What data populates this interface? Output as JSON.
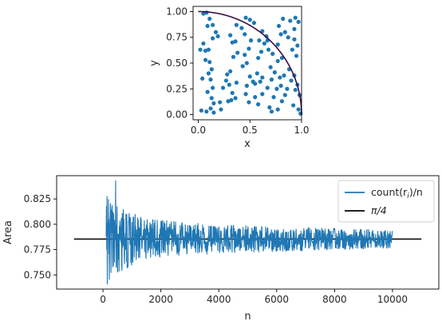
{
  "chart_data": [
    {
      "type": "scatter",
      "xlabel": "x",
      "ylabel": "y",
      "xlim": [
        -0.05,
        1.0
      ],
      "ylim": [
        -0.05,
        1.05
      ],
      "xticks": [
        0.0,
        0.5,
        1.0
      ],
      "xtick_labels": [
        "0.0",
        "0.5",
        "1.0"
      ],
      "yticks": [
        0.0,
        0.25,
        0.5,
        0.75,
        1.0
      ],
      "ytick_labels": [
        "0.00",
        "0.25",
        "0.50",
        "0.75",
        "1.00"
      ],
      "grid": false,
      "colors": {
        "points": "#1f77b4",
        "curve": "#3b0f3f"
      },
      "curve": {
        "description": "quarter circle y = sqrt(1 - x^2)",
        "x_range": [
          0.0,
          1.0
        ]
      },
      "points": [
        [
          0.05,
          0.98
        ],
        [
          0.08,
          0.99
        ],
        [
          0.11,
          0.93
        ],
        [
          0.09,
          0.86
        ],
        [
          0.14,
          0.87
        ],
        [
          0.17,
          0.8
        ],
        [
          0.14,
          0.74
        ],
        [
          0.19,
          0.76
        ],
        [
          0.05,
          0.69
        ],
        [
          0.02,
          0.63
        ],
        [
          0.07,
          0.62
        ],
        [
          0.1,
          0.63
        ],
        [
          0.07,
          0.53
        ],
        [
          0.11,
          0.51
        ],
        [
          0.13,
          0.44
        ],
        [
          0.1,
          0.4
        ],
        [
          0.04,
          0.35
        ],
        [
          0.12,
          0.34
        ],
        [
          0.14,
          0.26
        ],
        [
          0.09,
          0.22
        ],
        [
          0.13,
          0.16
        ],
        [
          0.15,
          0.11
        ],
        [
          0.12,
          0.06
        ],
        [
          0.08,
          0.03
        ],
        [
          0.15,
          0.02
        ],
        [
          0.03,
          0.04
        ],
        [
          0.22,
          0.05
        ],
        [
          0.21,
          0.12
        ],
        [
          0.24,
          0.26
        ],
        [
          0.27,
          0.33
        ],
        [
          0.28,
          0.39
        ],
        [
          0.31,
          0.42
        ],
        [
          0.3,
          0.29
        ],
        [
          0.33,
          0.21
        ],
        [
          0.29,
          0.13
        ],
        [
          0.32,
          0.14
        ],
        [
          0.36,
          0.16
        ],
        [
          0.37,
          0.31
        ],
        [
          0.34,
          0.56
        ],
        [
          0.38,
          0.6
        ],
        [
          0.36,
          0.71
        ],
        [
          0.33,
          0.7
        ],
        [
          0.31,
          0.77
        ],
        [
          0.37,
          0.87
        ],
        [
          0.42,
          0.84
        ],
        [
          0.46,
          0.94
        ],
        [
          0.5,
          0.92
        ],
        [
          0.54,
          0.89
        ],
        [
          0.45,
          0.78
        ],
        [
          0.51,
          0.72
        ],
        [
          0.49,
          0.64
        ],
        [
          0.45,
          0.58
        ],
        [
          0.43,
          0.47
        ],
        [
          0.47,
          0.5
        ],
        [
          0.5,
          0.37
        ],
        [
          0.47,
          0.28
        ],
        [
          0.53,
          0.32
        ],
        [
          0.55,
          0.3
        ],
        [
          0.46,
          0.2
        ],
        [
          0.49,
          0.12
        ],
        [
          0.55,
          0.17
        ],
        [
          0.58,
          0.1
        ],
        [
          0.62,
          0.2
        ],
        [
          0.6,
          0.32
        ],
        [
          0.62,
          0.36
        ],
        [
          0.57,
          0.4
        ],
        [
          0.58,
          0.55
        ],
        [
          0.61,
          0.61
        ],
        [
          0.64,
          0.69
        ],
        [
          0.59,
          0.72
        ],
        [
          0.67,
          0.72
        ],
        [
          0.62,
          0.81
        ],
        [
          0.66,
          0.76
        ],
        [
          0.68,
          0.63
        ],
        [
          0.72,
          0.59
        ],
        [
          0.7,
          0.46
        ],
        [
          0.74,
          0.41
        ],
        [
          0.71,
          0.34
        ],
        [
          0.67,
          0.26
        ],
        [
          0.76,
          0.25
        ],
        [
          0.73,
          0.17
        ],
        [
          0.69,
          0.07
        ],
        [
          0.71,
          0.03
        ],
        [
          0.77,
          0.05
        ],
        [
          0.81,
          0.13
        ],
        [
          0.84,
          0.19
        ],
        [
          0.8,
          0.28
        ],
        [
          0.86,
          0.25
        ],
        [
          0.79,
          0.36
        ],
        [
          0.83,
          0.38
        ],
        [
          0.77,
          0.52
        ],
        [
          0.81,
          0.55
        ],
        [
          0.77,
          0.68
        ],
        [
          0.8,
          0.78
        ],
        [
          0.84,
          0.8
        ],
        [
          0.78,
          0.86
        ],
        [
          0.82,
          0.93
        ],
        [
          0.89,
          0.91
        ],
        [
          0.94,
          0.94
        ],
        [
          0.97,
          0.9
        ],
        [
          0.93,
          0.83
        ],
        [
          0.87,
          0.75
        ],
        [
          0.93,
          0.73
        ],
        [
          0.91,
          0.63
        ],
        [
          0.96,
          0.67
        ],
        [
          0.95,
          0.57
        ],
        [
          0.88,
          0.44
        ],
        [
          0.93,
          0.38
        ],
        [
          0.96,
          0.29
        ],
        [
          0.98,
          0.19
        ],
        [
          0.92,
          0.09
        ],
        [
          0.97,
          0.05
        ],
        [
          0.99,
          0.01
        ],
        [
          0.94,
          0.24
        ],
        [
          0.9,
          0.33
        ]
      ]
    },
    {
      "type": "line",
      "xlabel": "n",
      "ylabel": "Area",
      "xlim": [
        -1600,
        11600
      ],
      "ylim": [
        0.736,
        0.848
      ],
      "xticks": [
        0,
        2000,
        4000,
        6000,
        8000,
        10000
      ],
      "xtick_labels": [
        "0",
        "2000",
        "4000",
        "6000",
        "8000",
        "10000"
      ],
      "yticks": [
        0.75,
        0.775,
        0.8,
        0.825
      ],
      "ytick_labels": [
        "0.750",
        "0.775",
        "0.800",
        "0.825"
      ],
      "grid": false,
      "legend": {
        "placement": "top-right",
        "entries": [
          {
            "label_main": "count(r",
            "label_sub": "i",
            "label_end": ")/n",
            "color": "#1f77b4"
          },
          {
            "label_main": "π/4",
            "color": "#000000"
          }
        ]
      },
      "reference_line": {
        "value": 0.7853981633974483,
        "x_range": [
          -1000,
          11000
        ],
        "color": "#000000"
      },
      "series": [
        {
          "color": "#1f77b4",
          "x_range": [
            100,
            10000
          ],
          "n_points": 1000,
          "center": 0.7853981633974483,
          "max_deviation": [
            [
              100,
              0.044
            ],
            [
              500,
              0.036
            ],
            [
              1500,
              0.02
            ],
            [
              4000,
              0.014
            ],
            [
              10000,
              0.009
            ]
          ],
          "values_note": "noisy estimate converging to pi/4; spike to 0.843 near n≈440 and dip to 0.741 near n≈150"
        }
      ]
    }
  ]
}
